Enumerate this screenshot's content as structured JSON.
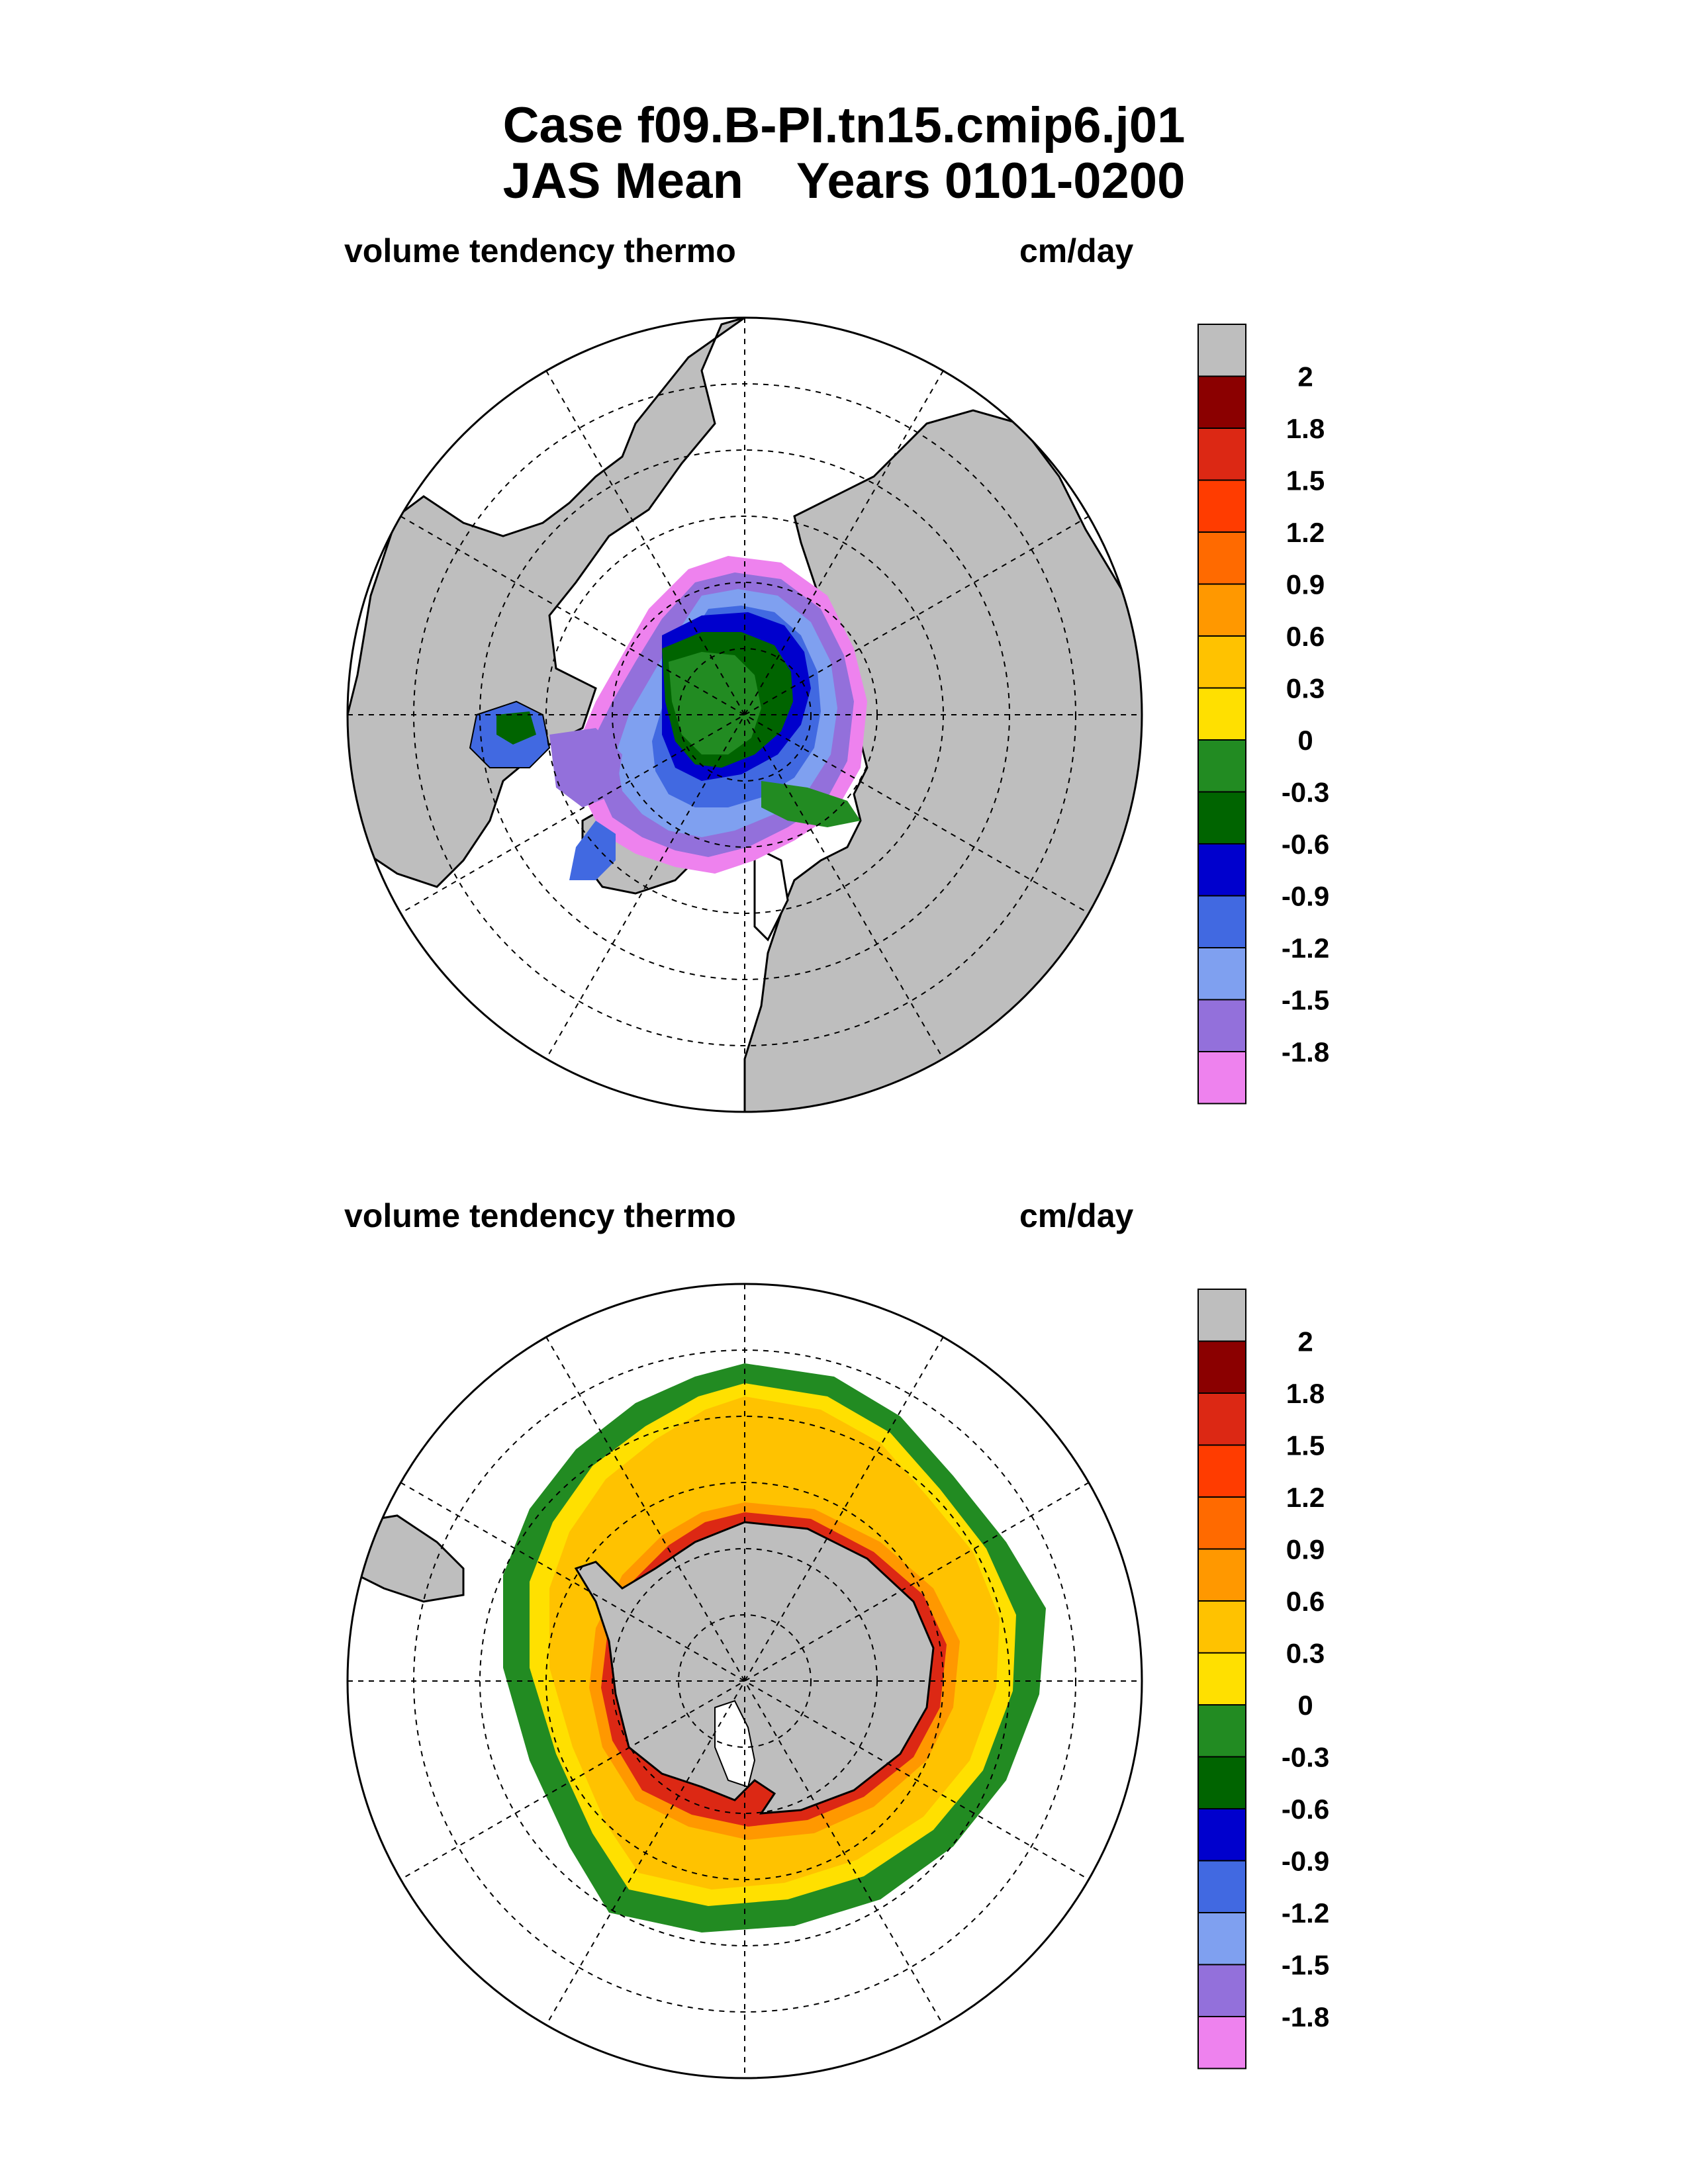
{
  "title": {
    "line1": "Case f09.B-PI.tn15.cmip6.j01",
    "line2_left": "JAS Mean",
    "line2_right": "Years 0101-0200"
  },
  "panels": [
    {
      "hemisphere": "north",
      "variable": "volume tendency thermo",
      "units": "cm/day"
    },
    {
      "hemisphere": "south",
      "variable": "volume tendency thermo",
      "units": "cm/day"
    }
  ],
  "colorbar": {
    "levels": [
      "2",
      "1.8",
      "1.5",
      "1.2",
      "0.9",
      "0.6",
      "0.3",
      "0",
      "-0.3",
      "-0.6",
      "-0.9",
      "-1.2",
      "-1.5",
      "-1.8"
    ],
    "colors": [
      "#bebebe",
      "#8b0000",
      "#dc2814",
      "#ff3c00",
      "#ff6a00",
      "#ff9800",
      "#ffc200",
      "#ffe000",
      "#228b22",
      "#006400",
      "#0000cd",
      "#4169e1",
      "#7fa0f0",
      "#9370db",
      "#ee82ee"
    ]
  },
  "colors": {
    "land": "#bebebe",
    "ocean": "#ffffff",
    "outline": "#000000"
  }
}
